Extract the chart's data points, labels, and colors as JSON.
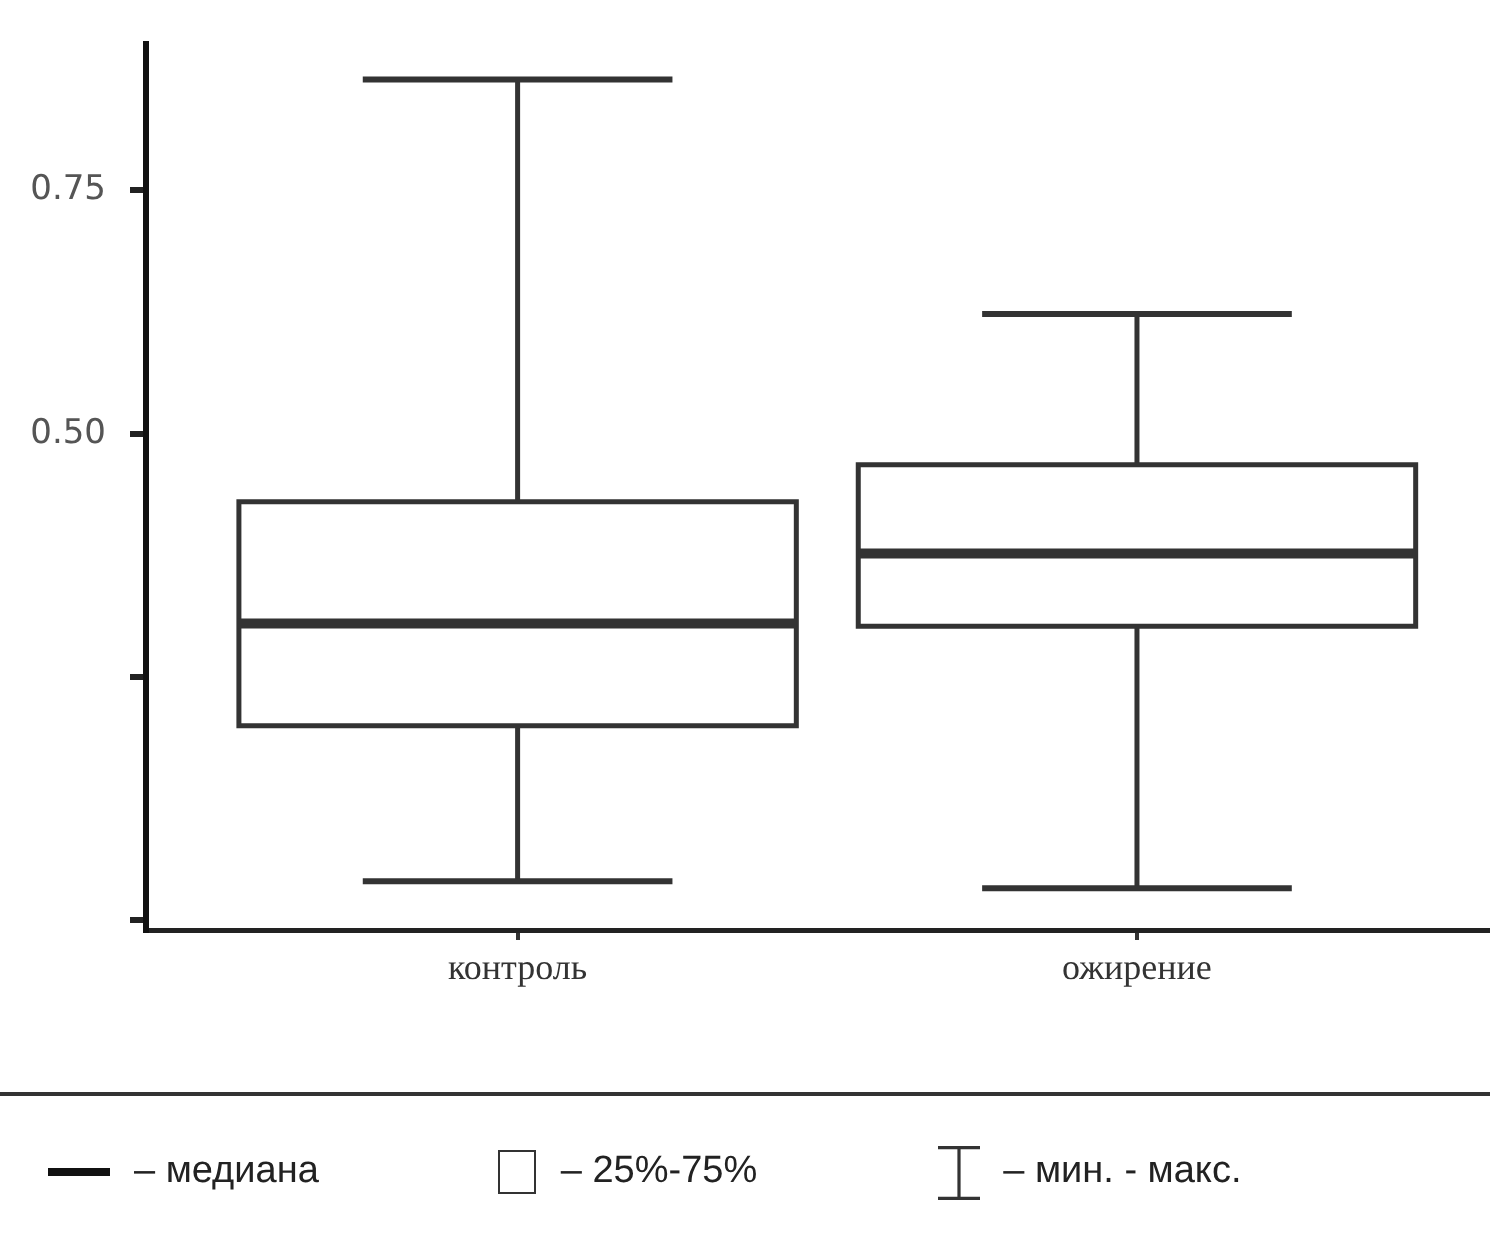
{
  "chart_data": {
    "type": "box",
    "categories": [
      "контроль",
      "ожирение"
    ],
    "series": [
      {
        "color": "#333333",
        "boxes": [
          {
            "low": 0.04,
            "q1": 0.2,
            "median": 0.305,
            "q3": 0.43,
            "high": 0.864
          },
          {
            "low": 0.033,
            "q1": 0.302,
            "median": 0.377,
            "q3": 0.468,
            "high": 0.623
          }
        ]
      }
    ],
    "ylim": [
      -0.01,
      0.9
    ],
    "yticks": [
      {
        "value": 0,
        "label": null
      },
      {
        "value": 0.25,
        "label": null
      },
      {
        "value": 0.5,
        "label": "0.50"
      },
      0.75
    ],
    "annotations": [
      "– медиана",
      "– 25%-75%",
      "– мин. - макс."
    ]
  }
}
